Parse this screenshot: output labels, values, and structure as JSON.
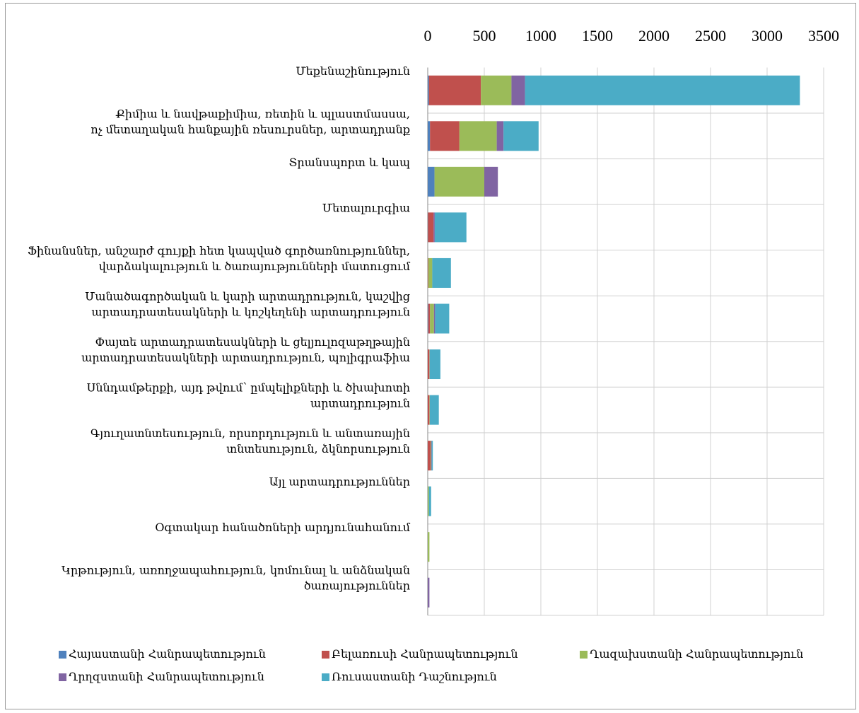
{
  "chart_data": {
    "type": "stacked_barh",
    "categories": [
      "Մեքենաշինություն",
      "Քիմիա և նավթաքիմիա, ռետին և պլաստմասսա,\nոչ մետաղական հանքային ռեսուրսներ, արտադրանք",
      "Տրանսպորտ և կապ",
      "Մետալուրգիա",
      "Ֆինանսներ, անշարժ գույքի հետ կապված գործառնություններ,\nվարձակալություն և ծառայությունների մատուցում",
      "Մանածագործական և կարի արտադրություն, կաշվից\nարտադրատեսակների և կոշկեղենի արտադրություն",
      "Փայտե արտադրատեսակների և ցելյուլոզաթղթային\nարտադրատեսակների արտադրություն, պոլիգրաֆիա",
      "Սննդամթերքի, այդ թվում՝ ըմպելիքների և ծխախոտի\nարտադրություն",
      "Գյուղատնտեսություն, որսորդություն և անտառային\nտնտեսություն, ձկնորսություն",
      "Այլ արտադրություններ",
      "Օգտակար հանածոների արդյունահանում",
      "Կրթություն, առողջապահություն, կոմունալ և անձնական\nծառայություններ"
    ],
    "series": [
      {
        "name": "Հայաստանի Հանրապետություն",
        "color": "#4f81bd",
        "values": [
          10,
          20,
          60,
          2,
          0,
          5,
          0,
          0,
          0,
          0,
          0,
          0
        ]
      },
      {
        "name": "Բելառուսի Հանրապետություն",
        "color": "#c0504d",
        "values": [
          460,
          260,
          0,
          50,
          5,
          15,
          15,
          15,
          25,
          0,
          0,
          0
        ]
      },
      {
        "name": "Ղազախստանի Հանրապետություն",
        "color": "#9bbb59",
        "values": [
          270,
          330,
          440,
          0,
          35,
          35,
          2,
          3,
          5,
          10,
          15,
          0
        ]
      },
      {
        "name": "Ղրղզստանի Հանրապետություն",
        "color": "#8064a2",
        "values": [
          120,
          60,
          120,
          10,
          0,
          10,
          0,
          0,
          5,
          0,
          0,
          15
        ]
      },
      {
        "name": "Ռուսաստանի Դաշնություն",
        "color": "#4bacc6",
        "values": [
          2430,
          310,
          0,
          280,
          165,
          125,
          95,
          80,
          10,
          20,
          0,
          0
        ]
      }
    ],
    "xlim": [
      0,
      3500
    ],
    "xticks": [
      0,
      500,
      1000,
      1500,
      2000,
      2500,
      3000,
      3500
    ],
    "grid": true
  }
}
